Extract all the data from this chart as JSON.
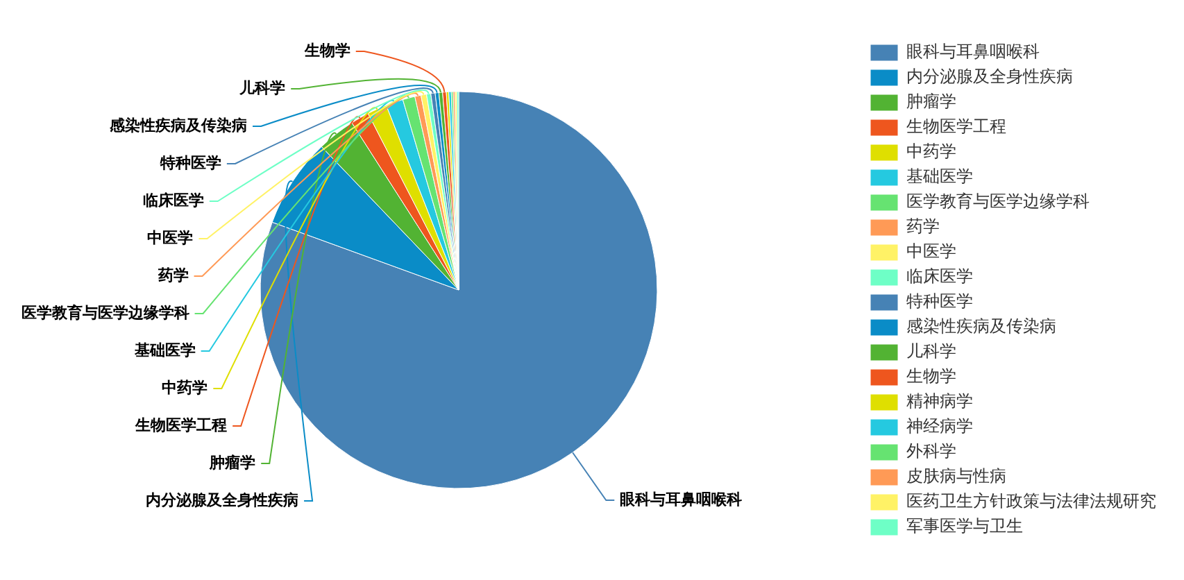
{
  "chart_data": {
    "type": "pie",
    "legend": "right",
    "categories": [
      "眼科与耳鼻咽喉科",
      "内分泌腺及全身性疾病",
      "肿瘤学",
      "生物医学工程",
      "中药学",
      "基础医学",
      "医学教育与医学边缘学科",
      "药学",
      "中医学",
      "临床医学",
      "特种医学",
      "感染性疾病及传染病",
      "儿科学",
      "生物学",
      "精神病学",
      "神经病学",
      "外科学",
      "皮肤病与性病",
      "医药卫生方针政策与法律法规研究",
      "军事医学与卫生"
    ],
    "values": [
      80.55,
      7.3,
      3.1,
      1.5,
      1.6,
      1.4,
      1.0,
      0.5,
      0.45,
      0.35,
      0.35,
      0.3,
      0.3,
      0.3,
      0.2,
      0.2,
      0.15,
      0.15,
      0.15,
      0.15
    ],
    "colors": [
      "#4682b5",
      "#0a8cc7",
      "#52b333",
      "#ee561e",
      "#dfdf00",
      "#25c9e0",
      "#66e371",
      "#ff9a56",
      "#fff266",
      "#6effc6",
      "#4682b5",
      "#0a8cc7",
      "#52b333",
      "#ee561e",
      "#dfdf00",
      "#25c9e0",
      "#66e371",
      "#ff9a56",
      "#fff266",
      "#6effc6"
    ]
  }
}
